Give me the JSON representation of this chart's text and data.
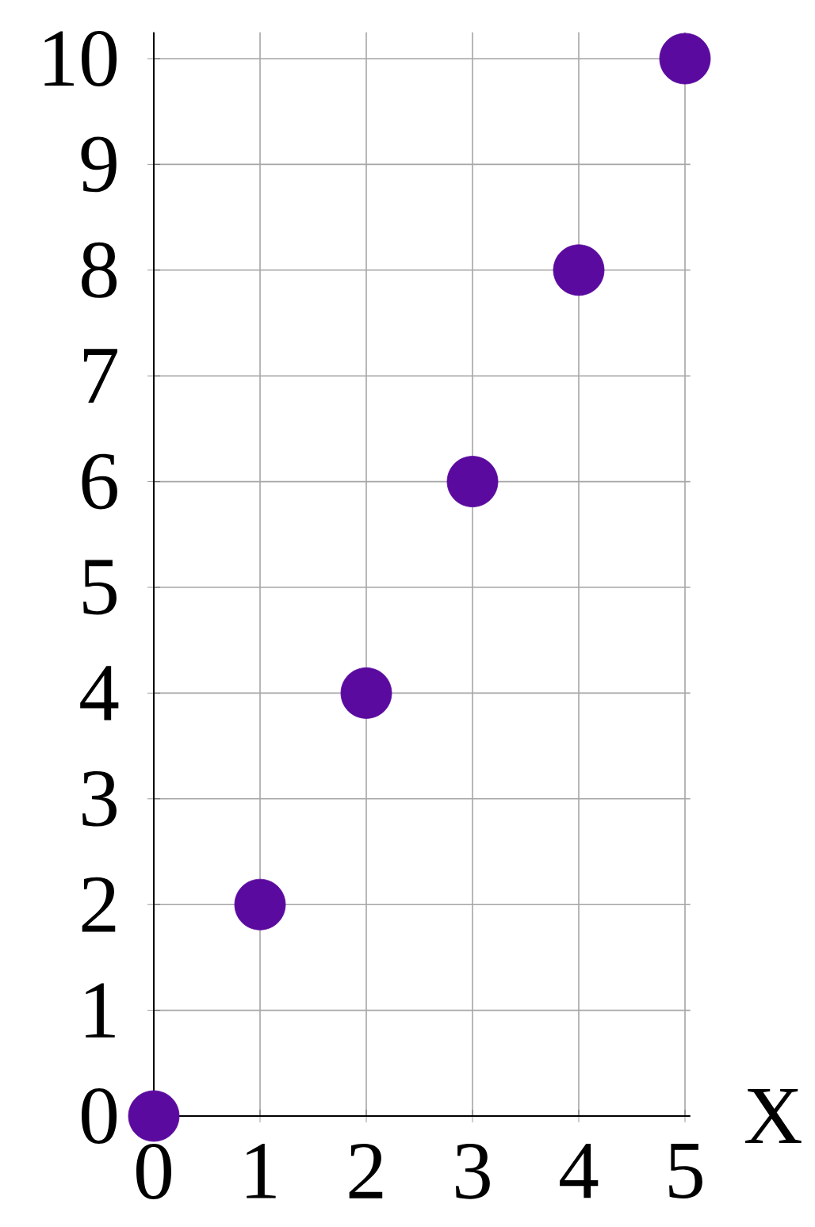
{
  "chart_data": {
    "type": "scatter",
    "xlabel": "X",
    "x": [
      0,
      1,
      2,
      3,
      4,
      5
    ],
    "series": [
      {
        "color": "#5a0a9e",
        "values": [
          0,
          2,
          4,
          6,
          8,
          10
        ]
      }
    ],
    "xlim": [
      0,
      5.05
    ],
    "ylim": [
      0,
      10.25
    ],
    "xticks": [
      0,
      1,
      2,
      3,
      4,
      5
    ],
    "yticks": [
      0,
      1,
      2,
      3,
      4,
      5,
      6,
      7,
      8,
      9,
      10
    ],
    "grid": true,
    "marker": "circle"
  }
}
